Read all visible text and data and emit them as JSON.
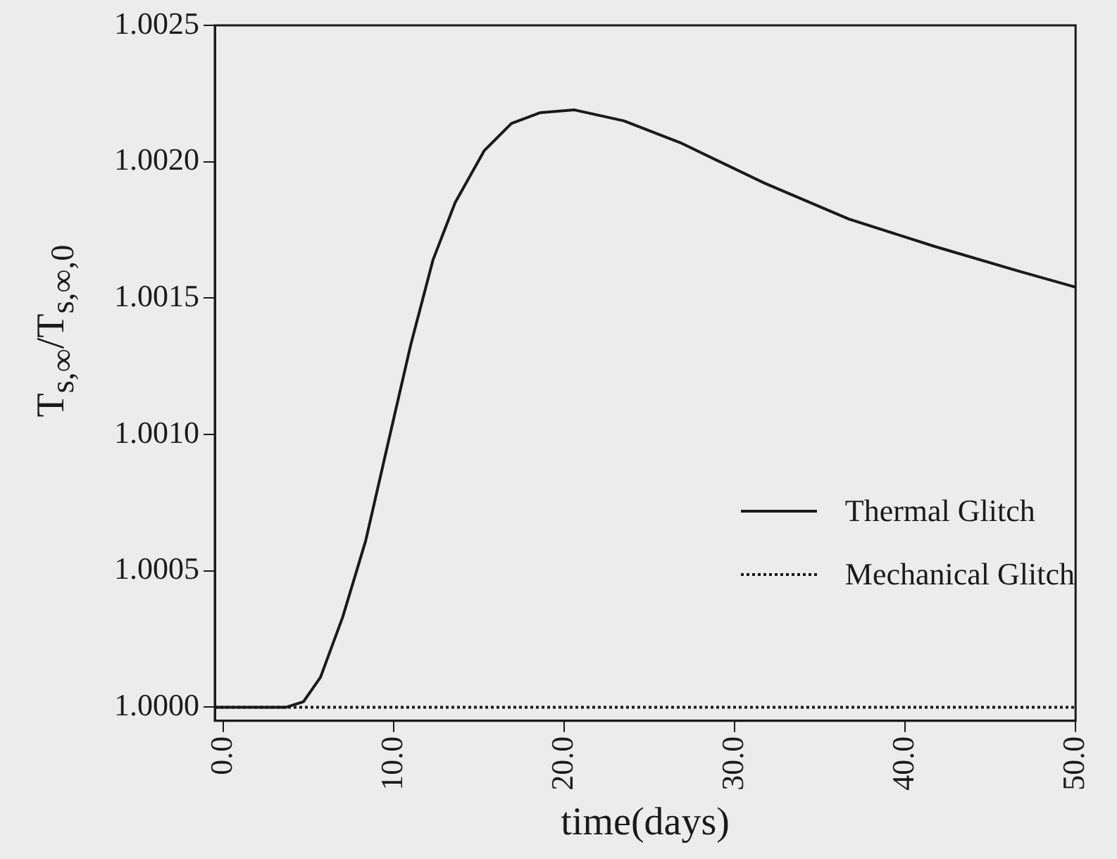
{
  "chart_data": {
    "type": "line",
    "xlabel": "time(days)",
    "ylabel": "T$_{s,∞}$/T$_{s,∞,0}$",
    "xlim": [
      -0.5,
      50
    ],
    "xticks": [
      {
        "value": 0,
        "label": "0.0"
      },
      {
        "value": 10,
        "label": "10.0"
      },
      {
        "value": 20,
        "label": "20.0"
      },
      {
        "value": 30,
        "label": "30.0"
      },
      {
        "value": 40,
        "label": "40.0"
      },
      {
        "value": 50,
        "label": "50.0"
      }
    ],
    "ylim": [
      0.99995,
      1.0025
    ],
    "yticks": [
      {
        "value": 1.0,
        "label": "1.0000"
      },
      {
        "value": 1.0005,
        "label": "1.0005"
      },
      {
        "value": 1.001,
        "label": "1.0010"
      },
      {
        "value": 1.0015,
        "label": "1.0015"
      },
      {
        "value": 1.002,
        "label": "1.0020"
      },
      {
        "value": 1.0025,
        "label": "1.0025"
      }
    ],
    "grid": false,
    "legend": "bottom right",
    "marker": "none",
    "series": [
      {
        "name": "Thermal Glitch",
        "color": "#1a1a1a",
        "line_style": "solid",
        "x": [
          -0.5,
          3.7,
          4.7,
          5.7,
          7.0,
          8.35,
          9.67,
          11.0,
          12.3,
          13.6,
          15.3,
          16.9,
          18.6,
          20.6,
          23.5,
          26.8,
          31.8,
          36.7,
          41.7,
          46.6,
          50
        ],
        "values": [
          1.0,
          1.0,
          1.00002,
          1.00011,
          1.00033,
          1.00061,
          1.00097,
          1.00133,
          1.00164,
          1.00185,
          1.00204,
          1.00214,
          1.00218,
          1.00219,
          1.00215,
          1.00207,
          1.00192,
          1.00179,
          1.00169,
          1.0016,
          1.00154
        ]
      },
      {
        "name": "Mechanical Glitch",
        "color": "#1a1a1a",
        "line_style": "dotted",
        "x": [
          -0.5,
          50
        ],
        "values": [
          1.0,
          1.0
        ]
      }
    ]
  }
}
